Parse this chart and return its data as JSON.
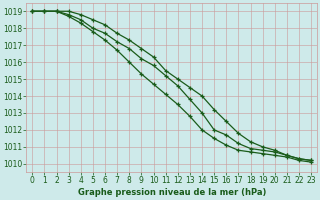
{
  "title": "Graphe pression niveau de la mer (hPa)",
  "bg_color": "#ceeaea",
  "grid_color": "#cc9999",
  "line_color": "#1a5c1a",
  "x_min": -0.5,
  "x_max": 23.5,
  "y_min": 1009.5,
  "y_max": 1019.5,
  "series": [
    [
      1019.0,
      1019.0,
      1019.0,
      1018.8,
      1018.5,
      1018.0,
      1017.7,
      1017.2,
      1016.8,
      1016.2,
      1015.8,
      1015.2,
      1014.6,
      1013.8,
      1013.0,
      1012.0,
      1011.7,
      1011.2,
      1010.9,
      1010.8,
      1010.7,
      1010.5,
      1010.3,
      1010.2
    ],
    [
      1019.0,
      1019.0,
      1019.0,
      1019.0,
      1018.8,
      1018.5,
      1018.2,
      1017.7,
      1017.3,
      1016.8,
      1016.3,
      1015.5,
      1015.0,
      1014.5,
      1014.0,
      1013.2,
      1012.5,
      1011.8,
      1011.3,
      1011.0,
      1010.8,
      1010.5,
      1010.3,
      1010.2
    ],
    [
      1019.0,
      1019.0,
      1019.0,
      1018.7,
      1018.3,
      1017.8,
      1017.3,
      1016.7,
      1016.0,
      1015.3,
      1014.7,
      1014.1,
      1013.5,
      1012.8,
      1012.0,
      1011.5,
      1011.1,
      1010.8,
      1010.7,
      1010.6,
      1010.5,
      1010.4,
      1010.2,
      1010.1
    ]
  ],
  "yticks": [
    1010,
    1011,
    1012,
    1013,
    1014,
    1015,
    1016,
    1017,
    1018,
    1019
  ],
  "xticks": [
    0,
    1,
    2,
    3,
    4,
    5,
    6,
    7,
    8,
    9,
    10,
    11,
    12,
    13,
    14,
    15,
    16,
    17,
    18,
    19,
    20,
    21,
    22,
    23
  ],
  "tick_fontsize": 5.5,
  "label_fontsize": 6.0,
  "linewidth": 0.9,
  "markersize": 3.5
}
